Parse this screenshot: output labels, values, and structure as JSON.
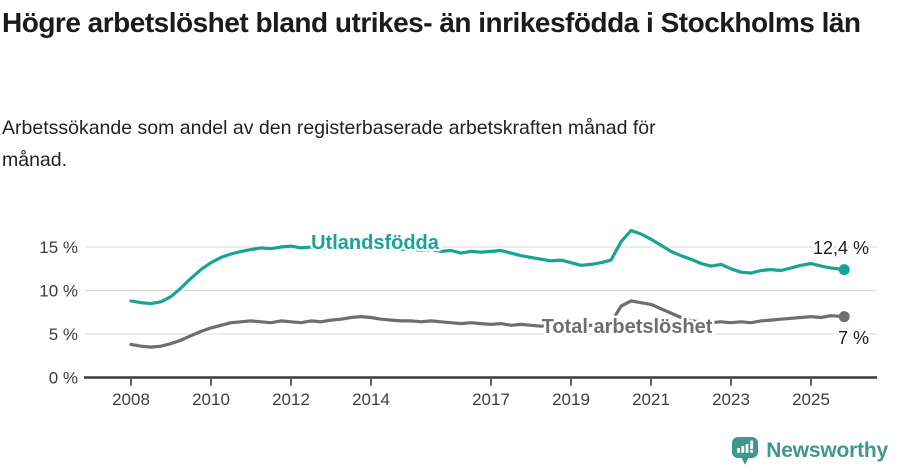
{
  "header": {
    "title": "Högre arbetslöshet bland utrikes- än inrikesfödda i Stockholms län",
    "subtitle": "Arbetssökande som andel av den registerbaserade arbetskraften månad för månad."
  },
  "colors": {
    "accent_teal": "#18A495",
    "series_gray": "#6E6E6E",
    "grid": "#D9D9D9",
    "axis": "#3D3D3D",
    "annotation": "#1D1D1B",
    "logo_teal": "#3E988B"
  },
  "chart_data": {
    "type": "line",
    "x_unit": "decimal year, monthly data",
    "xlim": [
      2006.85,
      2026.65
    ],
    "ylim": [
      0,
      17.5
    ],
    "grid": "horizontal",
    "legend_position": "inline-labels",
    "yticks": [
      {
        "value": 0,
        "label": "0 %"
      },
      {
        "value": 5,
        "label": "5 %"
      },
      {
        "value": 10,
        "label": "10 %"
      },
      {
        "value": 15,
        "label": "15 %"
      }
    ],
    "xticks": [
      {
        "value": 2008,
        "label": "2008"
      },
      {
        "value": 2010,
        "label": "2010"
      },
      {
        "value": 2012,
        "label": "2012"
      },
      {
        "value": 2014,
        "label": "2014"
      },
      {
        "value": 2017,
        "label": "2017"
      },
      {
        "value": 2019,
        "label": "2019"
      },
      {
        "value": 2021,
        "label": "2021"
      },
      {
        "value": 2023,
        "label": "2023"
      },
      {
        "value": 2025,
        "label": "2025"
      }
    ],
    "x": [
      2008,
      2008.25,
      2008.5,
      2008.75,
      2009,
      2009.25,
      2009.5,
      2009.75,
      2010,
      2010.25,
      2010.5,
      2010.75,
      2011,
      2011.25,
      2011.5,
      2011.75,
      2012,
      2012.25,
      2012.5,
      2012.75,
      2013,
      2013.25,
      2013.5,
      2013.75,
      2014,
      2014.25,
      2014.5,
      2014.75,
      2015,
      2015.25,
      2015.5,
      2015.75,
      2016,
      2016.25,
      2016.5,
      2016.75,
      2017,
      2017.25,
      2017.5,
      2017.75,
      2018,
      2018.25,
      2018.5,
      2018.75,
      2019,
      2019.25,
      2019.5,
      2019.75,
      2020,
      2020.25,
      2020.5,
      2020.75,
      2021,
      2021.25,
      2021.5,
      2021.75,
      2022,
      2022.25,
      2022.5,
      2022.75,
      2023,
      2023.25,
      2023.5,
      2023.75,
      2024,
      2024.25,
      2024.5,
      2024.75,
      2025,
      2025.25,
      2025.5,
      2025.83
    ],
    "series": [
      {
        "name": "Utlandsfödda",
        "color": "#18A495",
        "end_label": "12,4 %",
        "end_value": 12.4,
        "values": [
          8.8,
          8.6,
          8.5,
          8.7,
          9.3,
          10.3,
          11.4,
          12.4,
          13.2,
          13.8,
          14.2,
          14.5,
          14.7,
          14.9,
          14.8,
          15.0,
          15.1,
          14.9,
          15.0,
          14.8,
          15.0,
          14.9,
          15.1,
          15.2,
          15.0,
          14.8,
          14.9,
          14.7,
          14.8,
          14.6,
          14.7,
          14.5,
          14.6,
          14.3,
          14.5,
          14.4,
          14.5,
          14.6,
          14.3,
          14.0,
          13.8,
          13.6,
          13.4,
          13.5,
          13.2,
          12.9,
          13.0,
          13.2,
          13.5,
          15.6,
          16.9,
          16.5,
          15.9,
          15.2,
          14.5,
          14.0,
          13.6,
          13.1,
          12.8,
          13.0,
          12.5,
          12.1,
          12.0,
          12.3,
          12.4,
          12.3,
          12.6,
          12.9,
          13.1,
          12.8,
          12.6,
          12.4
        ]
      },
      {
        "name": "Total arbetslöshet",
        "color": "#6E6E6E",
        "end_label": "7 %",
        "end_value": 7.0,
        "values": [
          3.8,
          3.6,
          3.5,
          3.6,
          3.9,
          4.3,
          4.8,
          5.3,
          5.7,
          6.0,
          6.3,
          6.4,
          6.5,
          6.4,
          6.3,
          6.5,
          6.4,
          6.3,
          6.5,
          6.4,
          6.6,
          6.7,
          6.9,
          7.0,
          6.9,
          6.7,
          6.6,
          6.5,
          6.5,
          6.4,
          6.5,
          6.4,
          6.3,
          6.2,
          6.3,
          6.2,
          6.1,
          6.2,
          6.0,
          6.1,
          6.0,
          5.9,
          6.0,
          5.9,
          6.0,
          5.9,
          6.0,
          6.1,
          6.3,
          8.2,
          8.8,
          8.6,
          8.4,
          7.9,
          7.4,
          6.9,
          6.5,
          6.4,
          6.3,
          6.4,
          6.3,
          6.4,
          6.3,
          6.5,
          6.6,
          6.7,
          6.8,
          6.9,
          7.0,
          6.9,
          7.1,
          7.0
        ]
      }
    ]
  },
  "footer": {
    "brand": "Newsworthy",
    "logo_icon": "newsworthy-bubble-chart-icon"
  }
}
